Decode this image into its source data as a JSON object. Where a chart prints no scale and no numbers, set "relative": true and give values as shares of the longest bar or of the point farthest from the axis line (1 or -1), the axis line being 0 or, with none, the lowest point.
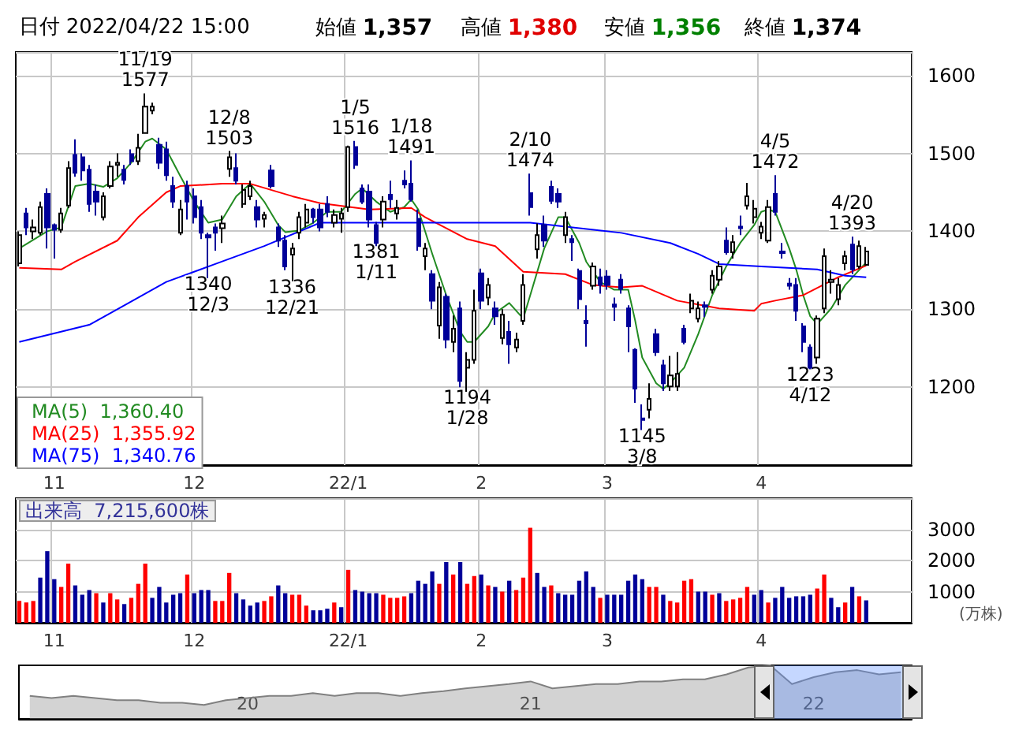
{
  "chart_data": [
    {
      "type": "candlestick",
      "grid": true,
      "legend": "bottom left",
      "ylim": [
        1100,
        1630
      ],
      "yticks": [
        1200,
        1300,
        1400,
        1500,
        1600
      ],
      "categories": [
        null,
        null,
        null,
        null,
        null,
        "11",
        null,
        null,
        null,
        null,
        null,
        null,
        null,
        null,
        null,
        null,
        null,
        null,
        null,
        null,
        null,
        null,
        null,
        null,
        null,
        "12",
        null,
        null,
        null,
        null,
        null,
        null,
        null,
        null,
        null,
        null,
        null,
        null,
        null,
        null,
        null,
        null,
        null,
        null,
        null,
        null,
        null,
        "22/1",
        null,
        null,
        null,
        null,
        null,
        null,
        null,
        null,
        null,
        null,
        null,
        null,
        null,
        null,
        null,
        null,
        null,
        null,
        "2",
        null,
        null,
        null,
        null,
        null,
        null,
        null,
        null,
        null,
        null,
        null,
        null,
        null,
        null,
        null,
        null,
        null,
        "3",
        null,
        null,
        null,
        null,
        null,
        null,
        null,
        null,
        null,
        null,
        null,
        null,
        null,
        null,
        null,
        null,
        null,
        null,
        null,
        null,
        null,
        "4",
        null,
        null,
        null,
        null,
        null,
        null,
        null,
        null,
        null,
        null,
        null,
        null,
        null,
        null,
        null
      ],
      "ohlc": [
        [
          1359,
          1400,
          1355,
          1395
        ],
        [
          1423,
          1430,
          1395,
          1405
        ],
        [
          1400,
          1415,
          1390,
          1405
        ],
        [
          1398,
          1438,
          1395,
          1431
        ],
        [
          1448,
          1455,
          1378,
          1405
        ],
        [
          1408,
          1410,
          1365,
          1402
        ],
        [
          1402,
          1430,
          1398,
          1423
        ],
        [
          1433,
          1490,
          1430,
          1481
        ],
        [
          1498,
          1518,
          1470,
          1475
        ],
        [
          1495,
          1500,
          1465,
          1478
        ],
        [
          1479,
          1485,
          1425,
          1435
        ],
        [
          1451,
          1460,
          1420,
          1438
        ],
        [
          1418,
          1450,
          1414,
          1445
        ],
        [
          1458,
          1490,
          1455,
          1483
        ],
        [
          1485,
          1500,
          1470,
          1488
        ],
        [
          1479,
          1485,
          1460,
          1466
        ],
        [
          1499,
          1505,
          1485,
          1490
        ],
        [
          1490,
          1525,
          1485,
          1507
        ],
        [
          1526,
          1577,
          1525,
          1560
        ],
        [
          1555,
          1565,
          1550,
          1560
        ],
        [
          1511,
          1520,
          1480,
          1488
        ],
        [
          1505,
          1515,
          1465,
          1472
        ],
        [
          1458,
          1470,
          1430,
          1438
        ],
        [
          1398,
          1440,
          1395,
          1428
        ],
        [
          1458,
          1465,
          1415,
          1438
        ],
        [
          1445,
          1455,
          1410,
          1418
        ],
        [
          1431,
          1440,
          1390,
          1398
        ],
        [
          1395,
          1398,
          1340,
          1392
        ],
        [
          1405,
          1410,
          1375,
          1398
        ],
        [
          1404,
          1420,
          1385,
          1410
        ],
        [
          1480,
          1503,
          1470,
          1495
        ],
        [
          1481,
          1500,
          1460,
          1465
        ],
        [
          1435,
          1460,
          1430,
          1453
        ],
        [
          1445,
          1465,
          1440,
          1458
        ],
        [
          1431,
          1440,
          1405,
          1415
        ],
        [
          1416,
          1425,
          1405,
          1421
        ],
        [
          1478,
          1485,
          1455,
          1458
        ],
        [
          1405,
          1410,
          1380,
          1388
        ],
        [
          1388,
          1395,
          1350,
          1355
        ],
        [
          1370,
          1385,
          1336,
          1378
        ],
        [
          1398,
          1425,
          1390,
          1418
        ],
        [
          1411,
          1435,
          1405,
          1428
        ],
        [
          1428,
          1430,
          1410,
          1418
        ],
        [
          1428,
          1435,
          1400,
          1405
        ],
        [
          1435,
          1445,
          1418,
          1425
        ],
        [
          1411,
          1428,
          1405,
          1421
        ],
        [
          1416,
          1430,
          1398,
          1423
        ],
        [
          1431,
          1510,
          1425,
          1508
        ],
        [
          1508,
          1516,
          1480,
          1485
        ],
        [
          1455,
          1460,
          1435,
          1438
        ],
        [
          1451,
          1460,
          1405,
          1415
        ],
        [
          1408,
          1412,
          1381,
          1385
        ],
        [
          1415,
          1445,
          1405,
          1438
        ],
        [
          1447,
          1465,
          1430,
          1441
        ],
        [
          1423,
          1440,
          1415,
          1430
        ],
        [
          1465,
          1478,
          1455,
          1460
        ],
        [
          1461,
          1491,
          1438,
          1441
        ],
        [
          1416,
          1428,
          1375,
          1381
        ],
        [
          1368,
          1385,
          1350,
          1378
        ],
        [
          1345,
          1350,
          1300,
          1311
        ],
        [
          1279,
          1335,
          1262,
          1328
        ],
        [
          1316,
          1320,
          1250,
          1261
        ],
        [
          1258,
          1292,
          1245,
          1275
        ],
        [
          1301,
          1310,
          1200,
          1208
        ],
        [
          1225,
          1245,
          1194,
          1235
        ],
        [
          1235,
          1325,
          1230,
          1298
        ],
        [
          1346,
          1352,
          1300,
          1311
        ],
        [
          1315,
          1340,
          1305,
          1331
        ],
        [
          1301,
          1310,
          1280,
          1291
        ],
        [
          1263,
          1300,
          1255,
          1293
        ],
        [
          1271,
          1285,
          1230,
          1255
        ],
        [
          1251,
          1270,
          1245,
          1261
        ],
        [
          1285,
          1345,
          1280,
          1331
        ],
        [
          1449,
          1474,
          1420,
          1431
        ],
        [
          1377,
          1410,
          1365,
          1395
        ],
        [
          1408,
          1420,
          1380,
          1388
        ],
        [
          1457,
          1465,
          1435,
          1439
        ],
        [
          1448,
          1455,
          1430,
          1438
        ],
        [
          1395,
          1425,
          1385,
          1418
        ],
        [
          1390,
          1395,
          1362,
          1386
        ],
        [
          1349,
          1352,
          1300,
          1313
        ],
        [
          1285,
          1305,
          1252,
          1282
        ],
        [
          1330,
          1360,
          1325,
          1355
        ],
        [
          1341,
          1352,
          1320,
          1331
        ],
        [
          1342,
          1350,
          1325,
          1331
        ],
        [
          1306,
          1315,
          1285,
          1303
        ],
        [
          1338,
          1345,
          1320,
          1326
        ],
        [
          1301,
          1305,
          1245,
          1278
        ],
        [
          1248,
          1250,
          1180,
          1198
        ],
        [
          1160,
          1178,
          1145,
          1158
        ],
        [
          1171,
          1205,
          1160,
          1185
        ],
        [
          1268,
          1275,
          1240,
          1245
        ],
        [
          1228,
          1235,
          1195,
          1205
        ],
        [
          1201,
          1240,
          1195,
          1215
        ],
        [
          1201,
          1245,
          1195,
          1217
        ],
        [
          1275,
          1280,
          1255,
          1258
        ],
        [
          1301,
          1320,
          1295,
          1311
        ],
        [
          1288,
          1310,
          1283,
          1301
        ],
        [
          1305,
          1310,
          1290,
          1303
        ],
        [
          1325,
          1350,
          1320,
          1343
        ],
        [
          1338,
          1362,
          1330,
          1355
        ],
        [
          1388,
          1405,
          1370,
          1373
        ],
        [
          1373,
          1395,
          1365,
          1386
        ],
        [
          1406,
          1420,
          1395,
          1404
        ],
        [
          1433,
          1462,
          1428,
          1445
        ],
        [
          1418,
          1440,
          1410,
          1429
        ],
        [
          1398,
          1412,
          1390,
          1406
        ],
        [
          1388,
          1440,
          1385,
          1431
        ],
        [
          1448,
          1472,
          1420,
          1425
        ],
        [
          1374,
          1385,
          1365,
          1372
        ],
        [
          1333,
          1340,
          1325,
          1330
        ],
        [
          1331,
          1340,
          1285,
          1298
        ],
        [
          1278,
          1282,
          1245,
          1258
        ],
        [
          1251,
          1255,
          1223,
          1225
        ],
        [
          1238,
          1292,
          1230,
          1288
        ],
        [
          1301,
          1378,
          1295,
          1368
        ],
        [
          1335,
          1350,
          1320,
          1338
        ],
        [
          1313,
          1340,
          1305,
          1331
        ],
        [
          1359,
          1375,
          1350,
          1368
        ],
        [
          1383,
          1393,
          1345,
          1351
        ],
        [
          1355,
          1388,
          1352,
          1381
        ],
        [
          1357,
          1380,
          1356,
          1374
        ]
      ],
      "series": [
        {
          "type": "line",
          "name": "MA(5)  1,360.40",
          "color": "#228b22",
          "values": [
            1378,
            null,
            null,
            null,
            1400,
            null,
            1405,
            null,
            1458,
            null,
            1461,
            null,
            1457,
            null,
            1468,
            null,
            1488,
            null,
            1515,
            1519,
            null,
            1505,
            null,
            1471,
            null,
            1438,
            null,
            1411,
            null,
            1415,
            null,
            1445,
            null,
            1461,
            null,
            1438,
            null,
            1408,
            1399,
            null,
            1401,
            null,
            1411,
            null,
            1425,
            null,
            1425,
            null,
            1448,
            1455,
            null,
            1438,
            null,
            1425,
            null,
            1431,
            1441,
            1428,
            null,
            1371,
            null,
            1318,
            null,
            1271,
            1258,
            1258,
            null,
            1278,
            1295,
            null,
            1308,
            null,
            1288,
            1318,
            null,
            1378,
            null,
            1418,
            1418,
            null,
            1385,
            1361,
            null,
            1335,
            null,
            1325,
            null,
            1325,
            1285,
            1238,
            null,
            1205,
            1198,
            1205,
            null,
            1225,
            null,
            1268,
            null,
            1318,
            null,
            1355,
            null,
            1385,
            null,
            1408,
            1425,
            1428,
            1425,
            null,
            1378,
            1351,
            1318,
            1291,
            1281,
            null,
            1301,
            null,
            1331,
            null,
            null,
            1360
          ]
        },
        {
          "type": "line",
          "name": "MA(25)  1,355.92",
          "color": "#ff0000",
          "values": [
            1353,
            null,
            null,
            null,
            null,
            null,
            1351,
            null,
            1361,
            null,
            null,
            null,
            null,
            null,
            1388,
            null,
            null,
            1418,
            null,
            null,
            null,
            1450,
            null,
            1458,
            null,
            null,
            null,
            null,
            null,
            1461,
            null,
            null,
            null,
            1461,
            null,
            null,
            null,
            null,
            null,
            1445,
            null,
            null,
            null,
            1436,
            null,
            null,
            null,
            null,
            null,
            null,
            1428,
            null,
            null,
            null,
            null,
            null,
            1430,
            null,
            1418,
            null,
            null,
            null,
            null,
            null,
            1390,
            null,
            null,
            null,
            1381,
            null,
            null,
            null,
            1348,
            null,
            null,
            null,
            null,
            null,
            1345,
            null,
            null,
            null,
            1331,
            null,
            null,
            null,
            1328,
            null,
            null,
            1330,
            null,
            null,
            null,
            null,
            1311,
            null,
            null,
            null,
            null,
            null,
            1301,
            null,
            null,
            null,
            null,
            1298,
            1307,
            null,
            1311,
            null,
            null,
            null,
            1318,
            null,
            null,
            null,
            null,
            1341,
            null,
            null,
            null,
            1356
          ]
        },
        {
          "type": "line",
          "name": "MA(75)  1,340.76",
          "color": "#0000ff",
          "values": [
            1258,
            null,
            null,
            null,
            null,
            null,
            null,
            null,
            null,
            null,
            1280,
            null,
            null,
            null,
            1300,
            null,
            null,
            null,
            null,
            null,
            null,
            1335,
            null,
            null,
            null,
            null,
            null,
            null,
            1358,
            null,
            null,
            null,
            null,
            null,
            null,
            1381,
            null,
            null,
            null,
            null,
            null,
            null,
            null,
            1411,
            null,
            null,
            null,
            null,
            null,
            null,
            null,
            null,
            null,
            null,
            null,
            null,
            null,
            null,
            null,
            null,
            null,
            null,
            null,
            null,
            1411,
            null,
            null,
            null,
            null,
            null,
            null,
            null,
            null,
            1411,
            null,
            null,
            null,
            null,
            null,
            null,
            null,
            null,
            null,
            null,
            null,
            null,
            1398,
            null,
            null,
            null,
            null,
            null,
            null,
            1385,
            null,
            null,
            null,
            1371,
            null,
            null,
            1358,
            null,
            null,
            null,
            null,
            null,
            1355,
            null,
            null,
            null,
            null,
            null,
            null,
            null,
            1351,
            null,
            null,
            null,
            1343,
            null,
            null,
            1341
          ]
        }
      ],
      "annotations": [
        "日付 2022/04/22 15:00",
        "始値 1,357",
        "高値 1,380",
        "安値 1,356",
        "終値 1,374",
        {
          "text": "11/19\n1577",
          "y": 1577
        },
        {
          "text": "1340\n12/3",
          "y": 1340
        },
        {
          "text": "12/8\n1503",
          "y": 1503
        },
        {
          "text": "1336\n12/21",
          "y": 1336
        },
        {
          "text": "1/5\n1516",
          "y": 1516
        },
        {
          "text": "1381\n1/11",
          "y": 1381
        },
        {
          "text": "1/18\n1491",
          "y": 1491
        },
        {
          "text": "1194\n1/28",
          "y": 1194
        },
        {
          "text": "2/10\n1474",
          "y": 1474
        },
        {
          "text": "1145\n3/8",
          "y": 1145
        },
        {
          "text": "4/5\n1472",
          "y": 1472
        },
        {
          "text": "1223\n4/12",
          "y": 1223
        },
        {
          "text": "4/20\n1393",
          "y": 1393
        }
      ]
    },
    {
      "type": "bar",
      "title": "出来高  7,215,600株",
      "ylabel": "(万株)",
      "grid": true,
      "ylim": [
        0,
        4000
      ],
      "yticks": [
        1000,
        2000,
        3000
      ],
      "categories": [
        null,
        null,
        null,
        null,
        null,
        "11",
        null,
        null,
        null,
        null,
        null,
        null,
        null,
        null,
        null,
        null,
        null,
        null,
        null,
        null,
        null,
        null,
        null,
        null,
        null,
        "12",
        null,
        null,
        null,
        null,
        null,
        null,
        null,
        null,
        null,
        null,
        null,
        null,
        null,
        null,
        null,
        null,
        null,
        null,
        null,
        null,
        null,
        "22/1",
        null,
        null,
        null,
        null,
        null,
        null,
        null,
        null,
        null,
        null,
        null,
        null,
        null,
        null,
        null,
        null,
        null,
        null,
        "2",
        null,
        null,
        null,
        null,
        null,
        null,
        null,
        null,
        null,
        null,
        null,
        null,
        null,
        null,
        null,
        null,
        null,
        "3",
        null,
        null,
        null,
        null,
        null,
        null,
        null,
        null,
        null,
        null,
        null,
        null,
        null,
        null,
        null,
        null,
        null,
        null,
        null,
        null,
        null,
        "4",
        null,
        null,
        null,
        null,
        null,
        null,
        null,
        null,
        null,
        null,
        null,
        null,
        null,
        null,
        null
      ],
      "values": [
        700,
        650,
        700,
        1450,
        2300,
        1400,
        1150,
        1900,
        1200,
        900,
        1050,
        950,
        650,
        950,
        750,
        600,
        800,
        1250,
        1900,
        800,
        1150,
        650,
        900,
        950,
        1550,
        950,
        1050,
        1050,
        700,
        700,
        1600,
        950,
        750,
        550,
        650,
        700,
        850,
        1200,
        950,
        900,
        900,
        550,
        400,
        400,
        450,
        650,
        500,
        1700,
        1050,
        1000,
        950,
        950,
        900,
        800,
        800,
        850,
        950,
        1350,
        1250,
        1650,
        1250,
        1950,
        1550,
        1950,
        1250,
        1500,
        1550,
        1200,
        1150,
        1000,
        1350,
        1050,
        1450,
        3050,
        1600,
        1150,
        1200,
        950,
        900,
        900,
        1350,
        1650,
        1150,
        800,
        900,
        900,
        900,
        1350,
        1550,
        1400,
        1150,
        1150,
        900,
        700,
        650,
        1350,
        1400,
        1000,
        1000,
        900,
        950,
        700,
        750,
        800,
        1150,
        900,
        1050,
        650,
        800,
        1150,
        800,
        850,
        850,
        900,
        1100,
        1550,
        800,
        500,
        650,
        1150,
        850,
        720
      ],
      "colors": [
        "#ff0000",
        "#ff0000",
        "#ff0000",
        "#000099",
        "#000099",
        "#000099",
        "#ff0000",
        "#ff0000",
        "#000099",
        "#000099",
        "#000099",
        "#ff0000",
        "#000099",
        "#ff0000",
        "#ff0000",
        "#000099",
        "#ff0000",
        "#ff0000",
        "#ff0000",
        "#000099",
        "#000099",
        "#000099",
        "#000099",
        "#000099",
        "#ff0000",
        "#000099",
        "#000099",
        "#000099",
        "#ff0000",
        "#ff0000",
        "#ff0000",
        "#000099",
        "#000099",
        "#000099",
        "#000099",
        "#ff0000",
        "#ff0000",
        "#000099",
        "#000099",
        "#ff0000",
        "#ff0000",
        "#ff0000",
        "#000099",
        "#000099",
        "#000099",
        "#ff0000",
        "#000099",
        "#ff0000",
        "#000099",
        "#000099",
        "#000099",
        "#000099",
        "#ff0000",
        "#ff0000",
        "#ff0000",
        "#ff0000",
        "#000099",
        "#000099",
        "#000099",
        "#000099",
        "#ff0000",
        "#000099",
        "#ff0000",
        "#000099",
        "#ff0000",
        "#ff0000",
        "#000099",
        "#ff0000",
        "#000099",
        "#ff0000",
        "#000099",
        "#ff0000",
        "#ff0000",
        "#ff0000",
        "#000099",
        "#000099",
        "#ff0000",
        "#000099",
        "#000099",
        "#000099",
        "#000099",
        "#000099",
        "#000099",
        "#ff0000",
        "#000099",
        "#000099",
        "#000099",
        "#000099",
        "#000099",
        "#000099",
        "#ff0000",
        "#ff0000",
        "#000099",
        "#ff0000",
        "#ff0000",
        "#ff0000",
        "#ff0000",
        "#000099",
        "#000099",
        "#ff0000",
        "#000099",
        "#ff0000",
        "#ff0000",
        "#ff0000",
        "#ff0000",
        "#000099",
        "#000099",
        "#ff0000",
        "#000099",
        "#000099",
        "#000099",
        "#000099",
        "#000099",
        "#000099",
        "#ff0000",
        "#ff0000",
        "#000099",
        "#000099",
        "#ff0000",
        "#000099",
        "#ff0000",
        "#000099"
      ]
    },
    {
      "type": "area",
      "relative": true,
      "color": "#808080",
      "categories": [
        null,
        null,
        null,
        null,
        null,
        null,
        null,
        null,
        null,
        null,
        "20",
        null,
        null,
        null,
        null,
        null,
        null,
        null,
        null,
        null,
        null,
        null,
        null,
        "21",
        null,
        null,
        null,
        null,
        null,
        null,
        null,
        null,
        null,
        null,
        null,
        null,
        "22",
        null,
        null,
        null,
        null
      ],
      "values": [
        0.43,
        0.39,
        0.43,
        0.39,
        0.35,
        0.35,
        0.3,
        0.3,
        0.26,
        0.35,
        0.39,
        0.43,
        0.43,
        0.48,
        0.43,
        0.48,
        0.48,
        0.43,
        0.48,
        0.52,
        0.57,
        0.61,
        0.65,
        0.7,
        0.57,
        0.61,
        0.65,
        0.65,
        0.7,
        0.7,
        0.74,
        0.74,
        0.83,
        0.96,
        1,
        0.65,
        0.78,
        0.87,
        0.91,
        0.83,
        0.87
      ]
    }
  ]
}
